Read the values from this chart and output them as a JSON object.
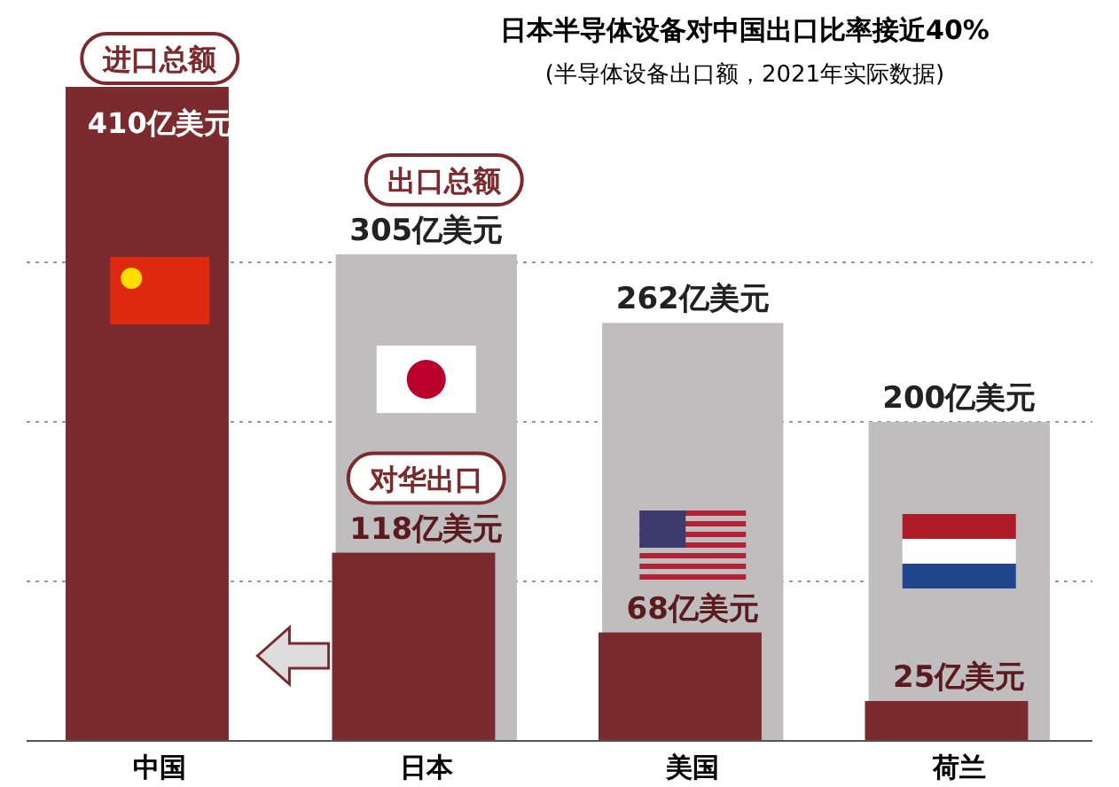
{
  "chart_data": {
    "type": "bar",
    "title": "日本半导体设备对中国出口比率接近40%",
    "subtitle": "(半导体设备出口额，2021年实际数据)",
    "categories": [
      "中国",
      "日本",
      "美国",
      "荷兰"
    ],
    "series": [
      {
        "name": "进口总额",
        "color": "#7b2a2e",
        "values": [
          410,
          null,
          null,
          null
        ],
        "value_labels": [
          "410亿美元",
          null,
          null,
          null
        ]
      },
      {
        "name": "出口总额",
        "color": "#bfbdbd",
        "values": [
          null,
          305,
          262,
          200
        ],
        "value_labels": [
          null,
          "305亿美元",
          "262亿美元",
          "200亿美元"
        ]
      },
      {
        "name": "对华出口",
        "color": "#7b2a2e",
        "values": [
          null,
          118,
          68,
          25
        ],
        "value_labels": [
          null,
          "118亿美元",
          "68亿美元",
          "25亿美元"
        ]
      }
    ],
    "yticks": [
      {
        "value": 100,
        "label": null
      },
      {
        "value": 200,
        "label": null
      },
      {
        "value": 300,
        "label": null
      }
    ],
    "grid": "y",
    "tick_labels": "x"
  }
}
